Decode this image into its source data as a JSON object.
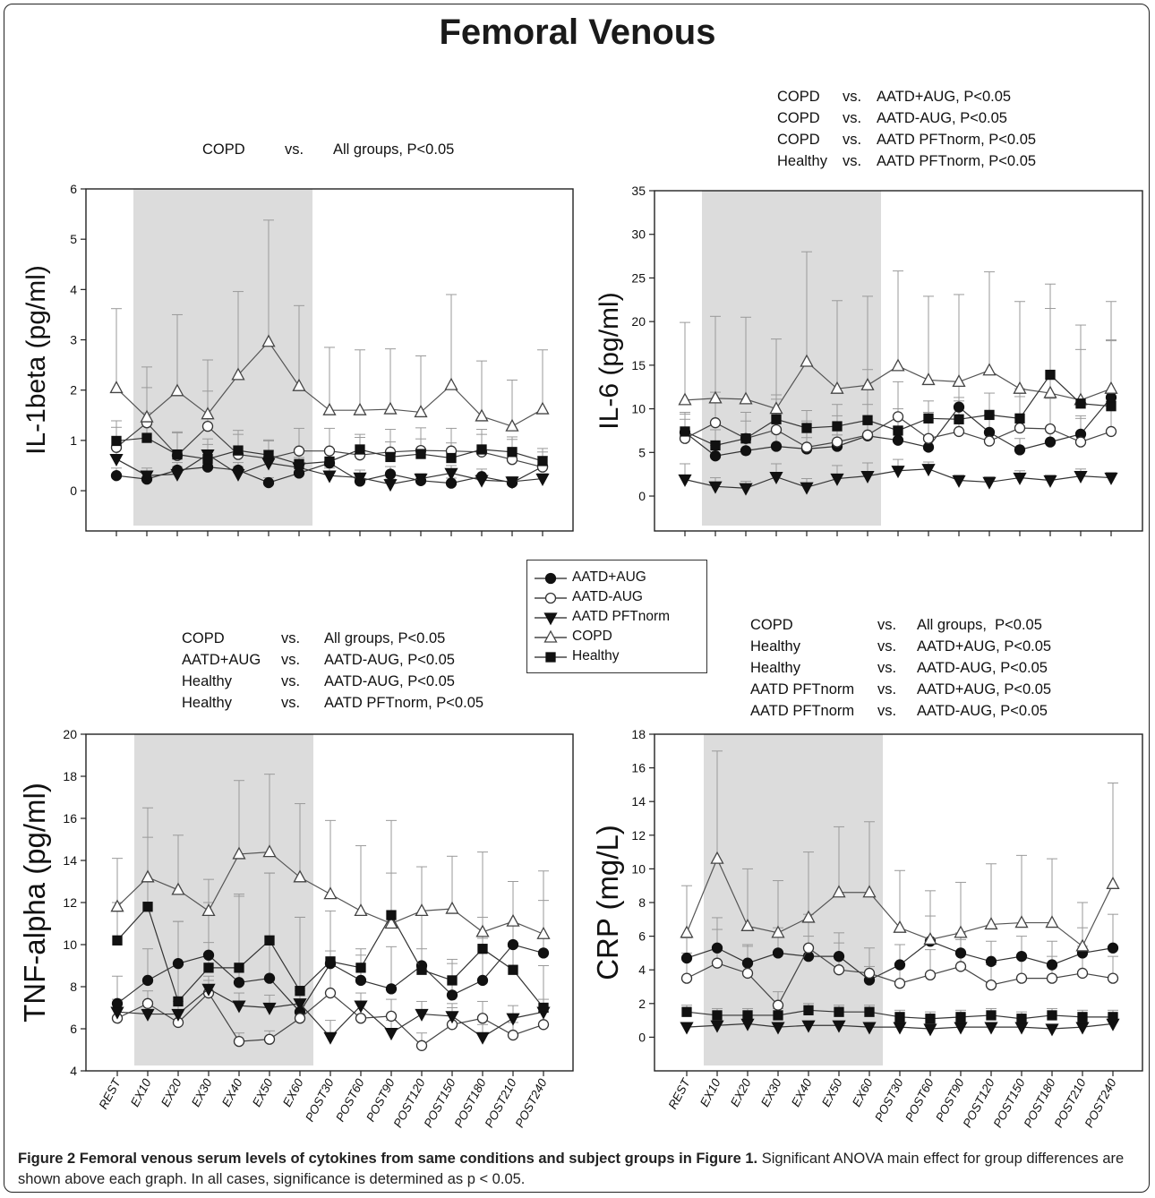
{
  "figure": {
    "title": "Femoral Venous",
    "caption_bold": "Figure 2 Femoral venous serum levels of cytokines from same conditions and subject groups in Figure 1.",
    "caption_rest": " Significant ANOVA main effect for group differences are shown above each graph. In all cases, significance is determined as p < 0.05."
  },
  "legend": [
    {
      "name": "AATD+AUG",
      "marker": "circle-filled"
    },
    {
      "name": "AATD-AUG",
      "marker": "circle-open"
    },
    {
      "name": "AATD PFTnorm",
      "marker": "triangle-down-filled"
    },
    {
      "name": "COPD",
      "marker": "triangle-up-open"
    },
    {
      "name": "Healthy",
      "marker": "square-filled"
    }
  ],
  "annotations": {
    "il1": [
      [
        "COPD",
        "vs.",
        "All groups, P<0.05"
      ]
    ],
    "il6": [
      [
        "COPD",
        "vs.",
        "AATD+AUG, P<0.05"
      ],
      [
        "COPD",
        "vs.",
        "AATD-AUG, P<0.05"
      ],
      [
        "COPD",
        "vs.",
        "AATD PFTnorm, P<0.05"
      ],
      [
        "Healthy",
        "vs.",
        "AATD PFTnorm, P<0.05"
      ]
    ],
    "tnf": [
      [
        "COPD",
        "vs.",
        "All groups, P<0.05"
      ],
      [
        "AATD+AUG",
        "vs.",
        "AATD-AUG, P<0.05"
      ],
      [
        "Healthy",
        "vs.",
        "AATD-AUG, P<0.05"
      ],
      [
        "Healthy",
        "vs.",
        "AATD PFTnorm, P<0.05"
      ]
    ],
    "crp": [
      [
        "COPD",
        "vs.",
        "All groups,  P<0.05"
      ],
      [
        "Healthy",
        "vs.",
        "AATD+AUG, P<0.05"
      ],
      [
        "Healthy",
        "vs.",
        "AATD-AUG, P<0.05"
      ],
      [
        "AATD PFTnorm",
        "vs.",
        "AATD+AUG, P<0.05"
      ],
      [
        "AATD PFTnorm",
        "vs.",
        "AATD-AUG, P<0.05"
      ]
    ]
  },
  "chart_data": [
    {
      "id": "il1",
      "type": "line",
      "ylabel": "IL-1beta (pg/ml)",
      "ylim": [
        -0.8,
        6
      ],
      "yticks": [
        0,
        1,
        2,
        3,
        4,
        5,
        6
      ],
      "shaded_x_range": [
        "EX10",
        "EX60"
      ],
      "categories": [
        "REST",
        "EX10",
        "EX20",
        "EX30",
        "EX40",
        "EX50",
        "EX60",
        "POST30",
        "POST60",
        "POST90",
        "POST120",
        "POST150",
        "POST180",
        "POST210",
        "POST240"
      ],
      "show_category_labels": false,
      "series": [
        {
          "name": "AATD+AUG",
          "values": [
            0.3,
            0.23,
            0.41,
            0.47,
            0.41,
            0.16,
            0.35,
            0.55,
            0.19,
            0.33,
            0.2,
            0.15,
            0.28,
            0.16,
            0.48
          ],
          "error": [
            0.15,
            0.12,
            0.15,
            0.15,
            0.15,
            0.1,
            0.15,
            0.25,
            0.1,
            0.15,
            0.1,
            0.1,
            0.15,
            0.1,
            0.2
          ]
        },
        {
          "name": "AATD-AUG",
          "values": [
            0.86,
            1.35,
            0.7,
            1.28,
            0.72,
            0.64,
            0.79,
            0.79,
            0.71,
            0.77,
            0.8,
            0.79,
            0.77,
            0.62,
            0.47
          ],
          "error": [
            0.4,
            0.7,
            0.45,
            0.7,
            0.4,
            0.35,
            0.45,
            0.45,
            0.35,
            0.45,
            0.45,
            0.45,
            0.45,
            0.4,
            0.3
          ]
        },
        {
          "name": "AATD PFTnorm",
          "values": [
            0.63,
            0.3,
            0.33,
            0.72,
            0.33,
            0.55,
            0.46,
            0.3,
            0.26,
            0.13,
            0.24,
            0.35,
            0.21,
            0.18,
            0.24
          ],
          "error": [
            0.2,
            0.15,
            0.15,
            0.2,
            0.15,
            0.25,
            0.2,
            0.15,
            0.15,
            0.1,
            0.1,
            0.15,
            0.1,
            0.1,
            0.1
          ]
        },
        {
          "name": "COPD",
          "values": [
            2.04,
            1.46,
            1.98,
            1.52,
            2.3,
            2.96,
            2.08,
            1.6,
            1.6,
            1.62,
            1.56,
            2.1,
            1.48,
            1.28,
            1.62
          ],
          "error": [
            1.58,
            1.0,
            1.52,
            1.08,
            1.66,
            2.42,
            1.6,
            1.25,
            1.2,
            1.2,
            1.12,
            1.8,
            1.1,
            0.92,
            1.18
          ]
        },
        {
          "name": "Healthy",
          "values": [
            0.99,
            1.05,
            0.72,
            0.63,
            0.8,
            0.71,
            0.53,
            0.58,
            0.82,
            0.67,
            0.73,
            0.65,
            0.82,
            0.77,
            0.59
          ],
          "error": [
            0.4,
            0.5,
            0.45,
            0.4,
            0.4,
            0.3,
            0.3,
            0.25,
            0.3,
            0.3,
            0.3,
            0.3,
            0.3,
            0.3,
            0.25
          ]
        }
      ]
    },
    {
      "id": "il6",
      "type": "line",
      "ylabel": "IL-6 (pg/ml)",
      "ylim": [
        -4,
        35
      ],
      "yticks": [
        0,
        5,
        10,
        15,
        20,
        25,
        30,
        35
      ],
      "shaded_x_range": [
        "EX10",
        "EX60"
      ],
      "categories": [
        "REST",
        "EX10",
        "EX20",
        "EX30",
        "EX40",
        "EX50",
        "EX60",
        "POST30",
        "POST60",
        "POST90",
        "POST120",
        "POST150",
        "POST180",
        "POST210",
        "POST240"
      ],
      "show_category_labels": false,
      "series": [
        {
          "name": "AATD+AUG",
          "values": [
            7.3,
            4.6,
            5.2,
            5.7,
            5.4,
            5.7,
            6.9,
            6.4,
            5.6,
            10.2,
            7.3,
            5.3,
            6.2,
            7.1,
            11.3
          ],
          "error": [
            1.5,
            1.2,
            1.2,
            1.5,
            1.3,
            1.3,
            1.5,
            1.5,
            1.3,
            2.5,
            2.0,
            1.3,
            1.5,
            1.8,
            6.5
          ]
        },
        {
          "name": "AATD-AUG",
          "values": [
            6.6,
            8.4,
            6.6,
            7.6,
            5.6,
            6.2,
            7.0,
            9.1,
            6.6,
            7.4,
            6.3,
            7.8,
            7.7,
            6.2,
            7.4
          ],
          "error": [
            3.0,
            3.5,
            3.0,
            3.5,
            3.0,
            3.0,
            3.5,
            4.0,
            3.0,
            3.5,
            3.0,
            4.5,
            3.5,
            3.0,
            3.5
          ]
        },
        {
          "name": "AATD PFTnorm",
          "values": [
            1.9,
            1.1,
            0.9,
            2.2,
            1.0,
            2.0,
            2.3,
            2.9,
            3.1,
            1.8,
            1.6,
            2.1,
            1.8,
            2.3,
            2.1
          ],
          "error": [
            1.8,
            1.0,
            0.8,
            1.5,
            1.0,
            1.5,
            1.5,
            1.3,
            0.8,
            0.6,
            0.6,
            0.8,
            0.6,
            0.8,
            0.6
          ]
        },
        {
          "name": "COPD",
          "values": [
            11.0,
            11.2,
            11.1,
            10.0,
            15.4,
            12.3,
            12.7,
            14.9,
            13.3,
            13.1,
            14.4,
            12.3,
            11.8,
            11.0,
            12.3
          ],
          "error": [
            8.9,
            9.4,
            9.4,
            8.0,
            12.6,
            10.1,
            10.2,
            10.9,
            9.6,
            10.0,
            11.3,
            10.0,
            12.5,
            8.6,
            10.0
          ]
        },
        {
          "name": "Healthy",
          "values": [
            7.4,
            5.8,
            6.6,
            8.8,
            7.8,
            8.0,
            8.7,
            7.5,
            8.9,
            8.8,
            9.3,
            8.9,
            13.9,
            10.6,
            10.3
          ],
          "error": [
            2.0,
            1.8,
            2.0,
            2.8,
            2.0,
            2.5,
            5.8,
            2.5,
            2.0,
            2.5,
            2.5,
            2.5,
            7.6,
            6.2,
            7.6
          ]
        }
      ]
    },
    {
      "id": "tnf",
      "type": "line",
      "ylabel": "TNF-alpha (pg/ml)",
      "ylim": [
        4,
        20
      ],
      "yticks": [
        4,
        6,
        8,
        10,
        12,
        14,
        16,
        18,
        20
      ],
      "shaded_x_range": [
        "EX10",
        "EX60"
      ],
      "categories": [
        "REST",
        "EX10",
        "EX20",
        "EX30",
        "EX40",
        "EX50",
        "EX60",
        "POST30",
        "POST60",
        "POST90",
        "POST120",
        "POST150",
        "POST180",
        "POST210",
        "POST240"
      ],
      "show_category_labels": true,
      "series": [
        {
          "name": "AATD+AUG",
          "values": [
            7.2,
            8.3,
            9.1,
            9.5,
            8.2,
            8.4,
            6.8,
            9.1,
            8.3,
            7.9,
            9.0,
            7.6,
            8.3,
            10.0,
            9.6
          ],
          "error": [
            1.3,
            1.5,
            2.0,
            2.5,
            4.2,
            5.0,
            4.5,
            2.5,
            1.5,
            2.0,
            2.5,
            1.5,
            2.0,
            3.0,
            2.5
          ]
        },
        {
          "name": "AATD-AUG",
          "values": [
            6.5,
            7.2,
            6.3,
            7.7,
            5.4,
            5.5,
            6.5,
            7.7,
            6.5,
            6.6,
            5.2,
            6.2,
            6.5,
            5.7,
            6.2
          ],
          "error": [
            0.5,
            0.6,
            0.5,
            0.6,
            0.4,
            0.4,
            0.6,
            1.5,
            0.8,
            0.8,
            0.6,
            0.8,
            0.8,
            0.6,
            0.6
          ]
        },
        {
          "name": "AATD PFTnorm",
          "values": [
            6.8,
            6.7,
            6.7,
            7.9,
            7.1,
            7.0,
            7.2,
            5.6,
            7.1,
            5.8,
            6.7,
            6.6,
            5.6,
            6.5,
            6.8
          ],
          "error": [
            0.6,
            0.6,
            0.6,
            0.6,
            0.6,
            0.6,
            0.6,
            0.8,
            0.6,
            0.6,
            0.6,
            0.6,
            0.6,
            0.6,
            0.6
          ]
        },
        {
          "name": "COPD",
          "values": [
            11.8,
            13.2,
            12.6,
            11.6,
            14.3,
            14.4,
            13.2,
            12.4,
            11.6,
            11.0,
            11.6,
            11.7,
            10.6,
            11.1,
            10.5
          ],
          "error": [
            2.3,
            3.3,
            2.6,
            1.5,
            3.5,
            3.7,
            3.5,
            3.5,
            3.1,
            4.9,
            2.1,
            2.5,
            3.8,
            1.9,
            3.0
          ]
        },
        {
          "name": "Healthy",
          "values": [
            10.2,
            11.8,
            7.3,
            8.9,
            8.9,
            10.2,
            7.8,
            9.2,
            8.9,
            11.4,
            8.8,
            8.3,
            9.8,
            8.8,
            7.0
          ],
          "error": [
            1.8,
            3.3,
            3.8,
            1.2,
            3.4,
            3.2,
            3.5,
            0.5,
            0.6,
            2.0,
            1.0,
            1.0,
            1.5,
            1.1,
            2.0
          ]
        }
      ]
    },
    {
      "id": "crp",
      "type": "line",
      "ylabel": "CRP (mg/L)",
      "ylim": [
        -2,
        18
      ],
      "yticks": [
        0,
        2,
        4,
        6,
        8,
        10,
        12,
        14,
        16,
        18
      ],
      "shaded_x_range": [
        "EX10",
        "EX60"
      ],
      "categories": [
        "REST",
        "EX10",
        "EX20",
        "EX30",
        "EX40",
        "EX50",
        "EX60",
        "POST30",
        "POST60",
        "POST90",
        "POST120",
        "POST150",
        "POST180",
        "POST210",
        "POST240"
      ],
      "show_category_labels": true,
      "series": [
        {
          "name": "AATD+AUG",
          "values": [
            4.7,
            5.3,
            4.4,
            5.0,
            4.8,
            4.8,
            3.4,
            4.3,
            5.7,
            5.0,
            4.5,
            4.8,
            4.3,
            5.0,
            5.3
          ],
          "error": [
            1.2,
            1.8,
            1.0,
            1.5,
            1.2,
            1.4,
            0.8,
            1.2,
            1.5,
            1.2,
            1.2,
            1.2,
            1.4,
            1.5,
            2.0
          ]
        },
        {
          "name": "AATD-AUG",
          "values": [
            3.5,
            4.4,
            3.8,
            1.9,
            5.3,
            4.0,
            3.8,
            3.2,
            3.7,
            4.2,
            3.1,
            3.5,
            3.5,
            3.8,
            3.5
          ],
          "error": [
            1.5,
            2.0,
            1.7,
            0.8,
            2.0,
            1.6,
            1.5,
            1.2,
            1.5,
            1.6,
            1.2,
            1.3,
            1.3,
            1.6,
            1.3
          ]
        },
        {
          "name": "AATD PFTnorm",
          "values": [
            0.6,
            0.7,
            0.8,
            0.6,
            0.7,
            0.7,
            0.6,
            0.6,
            0.5,
            0.6,
            0.6,
            0.6,
            0.5,
            0.6,
            0.8
          ],
          "error": [
            0.2,
            0.2,
            0.2,
            0.2,
            0.2,
            0.2,
            0.2,
            0.2,
            0.2,
            0.2,
            0.2,
            0.2,
            0.2,
            0.2,
            0.2
          ]
        },
        {
          "name": "COPD",
          "values": [
            6.2,
            10.6,
            6.6,
            6.2,
            7.1,
            8.6,
            8.6,
            6.5,
            5.8,
            6.2,
            6.7,
            6.8,
            6.8,
            5.4,
            9.1
          ],
          "error": [
            2.8,
            6.4,
            3.4,
            3.1,
            3.9,
            3.9,
            4.2,
            3.4,
            2.9,
            3.0,
            3.6,
            4.0,
            3.8,
            2.6,
            6.0
          ]
        },
        {
          "name": "Healthy",
          "values": [
            1.5,
            1.3,
            1.3,
            1.3,
            1.6,
            1.5,
            1.5,
            1.2,
            1.1,
            1.2,
            1.3,
            1.1,
            1.3,
            1.2,
            1.2
          ],
          "error": [
            0.4,
            0.4,
            0.4,
            0.4,
            0.4,
            0.4,
            0.4,
            0.4,
            0.4,
            0.4,
            0.4,
            0.4,
            0.4,
            0.4,
            0.4
          ]
        }
      ]
    }
  ]
}
